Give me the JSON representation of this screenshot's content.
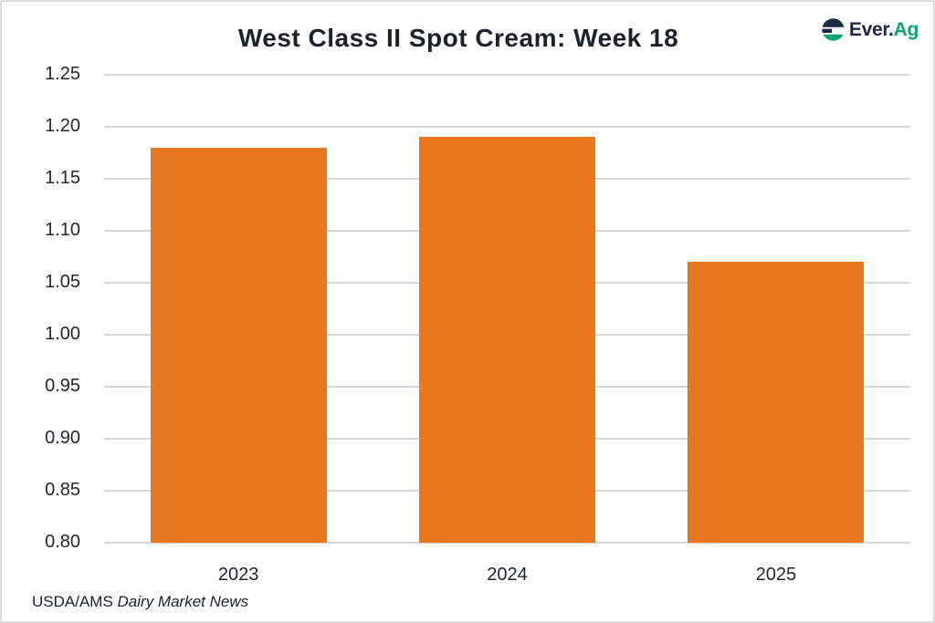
{
  "chart": {
    "title": "West Class II Spot Cream: Week 18"
  },
  "logo": {
    "ever": "Ever.",
    "ag": "Ag"
  },
  "source": {
    "prefix": "USDA/AMS ",
    "italic": "Dairy Market News"
  },
  "colors": {
    "bar": "#E8771F",
    "grid": "#D8D8D8",
    "title": "#1D212B",
    "logo_navy": "#1E2A44",
    "logo_green": "#0EA36E",
    "border": "#DEDEDE"
  },
  "chart_data": {
    "type": "bar",
    "categories": [
      "2023",
      "2024",
      "2025"
    ],
    "values": [
      1.18,
      1.19,
      1.07
    ],
    "title": "West Class II Spot Cream: Week 18",
    "xlabel": "",
    "ylabel": "",
    "ylim": [
      0.8,
      1.25
    ],
    "ytick_step": 0.05,
    "ytick_labels": [
      "0.80",
      "0.85",
      "0.90",
      "0.95",
      "1.00",
      "1.05",
      "1.10",
      "1.15",
      "1.20",
      "1.25"
    ],
    "grid": true,
    "legend": false,
    "bar_color": "#E8771F",
    "source": "USDA/AMS Dairy Market News"
  }
}
